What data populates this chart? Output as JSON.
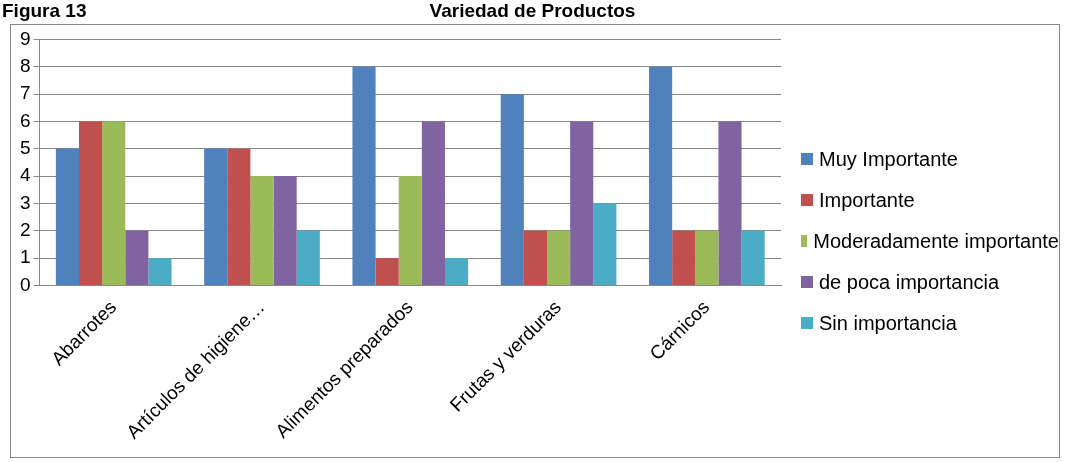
{
  "chart_data": {
    "type": "bar",
    "title": "Variedad de Productos",
    "annotations": [
      "Figura 13"
    ],
    "categories": [
      "Abarrotes",
      "Artículos de higiene…",
      "Alimentos preparados",
      "Frutas y verduras",
      "Cárnicos"
    ],
    "series": [
      {
        "name": "Muy Importante",
        "color": "#4f81bd",
        "values": [
          5,
          5,
          8,
          7,
          8
        ]
      },
      {
        "name": "Importante",
        "color": "#c0504d",
        "values": [
          6,
          5,
          1,
          2,
          2
        ]
      },
      {
        "name": "Moderadamente importante",
        "color": "#9bbb59",
        "values": [
          6,
          4,
          4,
          2,
          2
        ]
      },
      {
        "name": "de poca importancia",
        "color": "#8064a2",
        "values": [
          2,
          4,
          6,
          6,
          6
        ]
      },
      {
        "name": "Sin importancia",
        "color": "#4bacc6",
        "values": [
          1,
          2,
          1,
          3,
          2
        ]
      }
    ],
    "ylim": [
      0,
      9
    ],
    "yticks": [
      0,
      1,
      2,
      3,
      4,
      5,
      6,
      7,
      8,
      9
    ],
    "grid": "y",
    "legend": "right"
  }
}
